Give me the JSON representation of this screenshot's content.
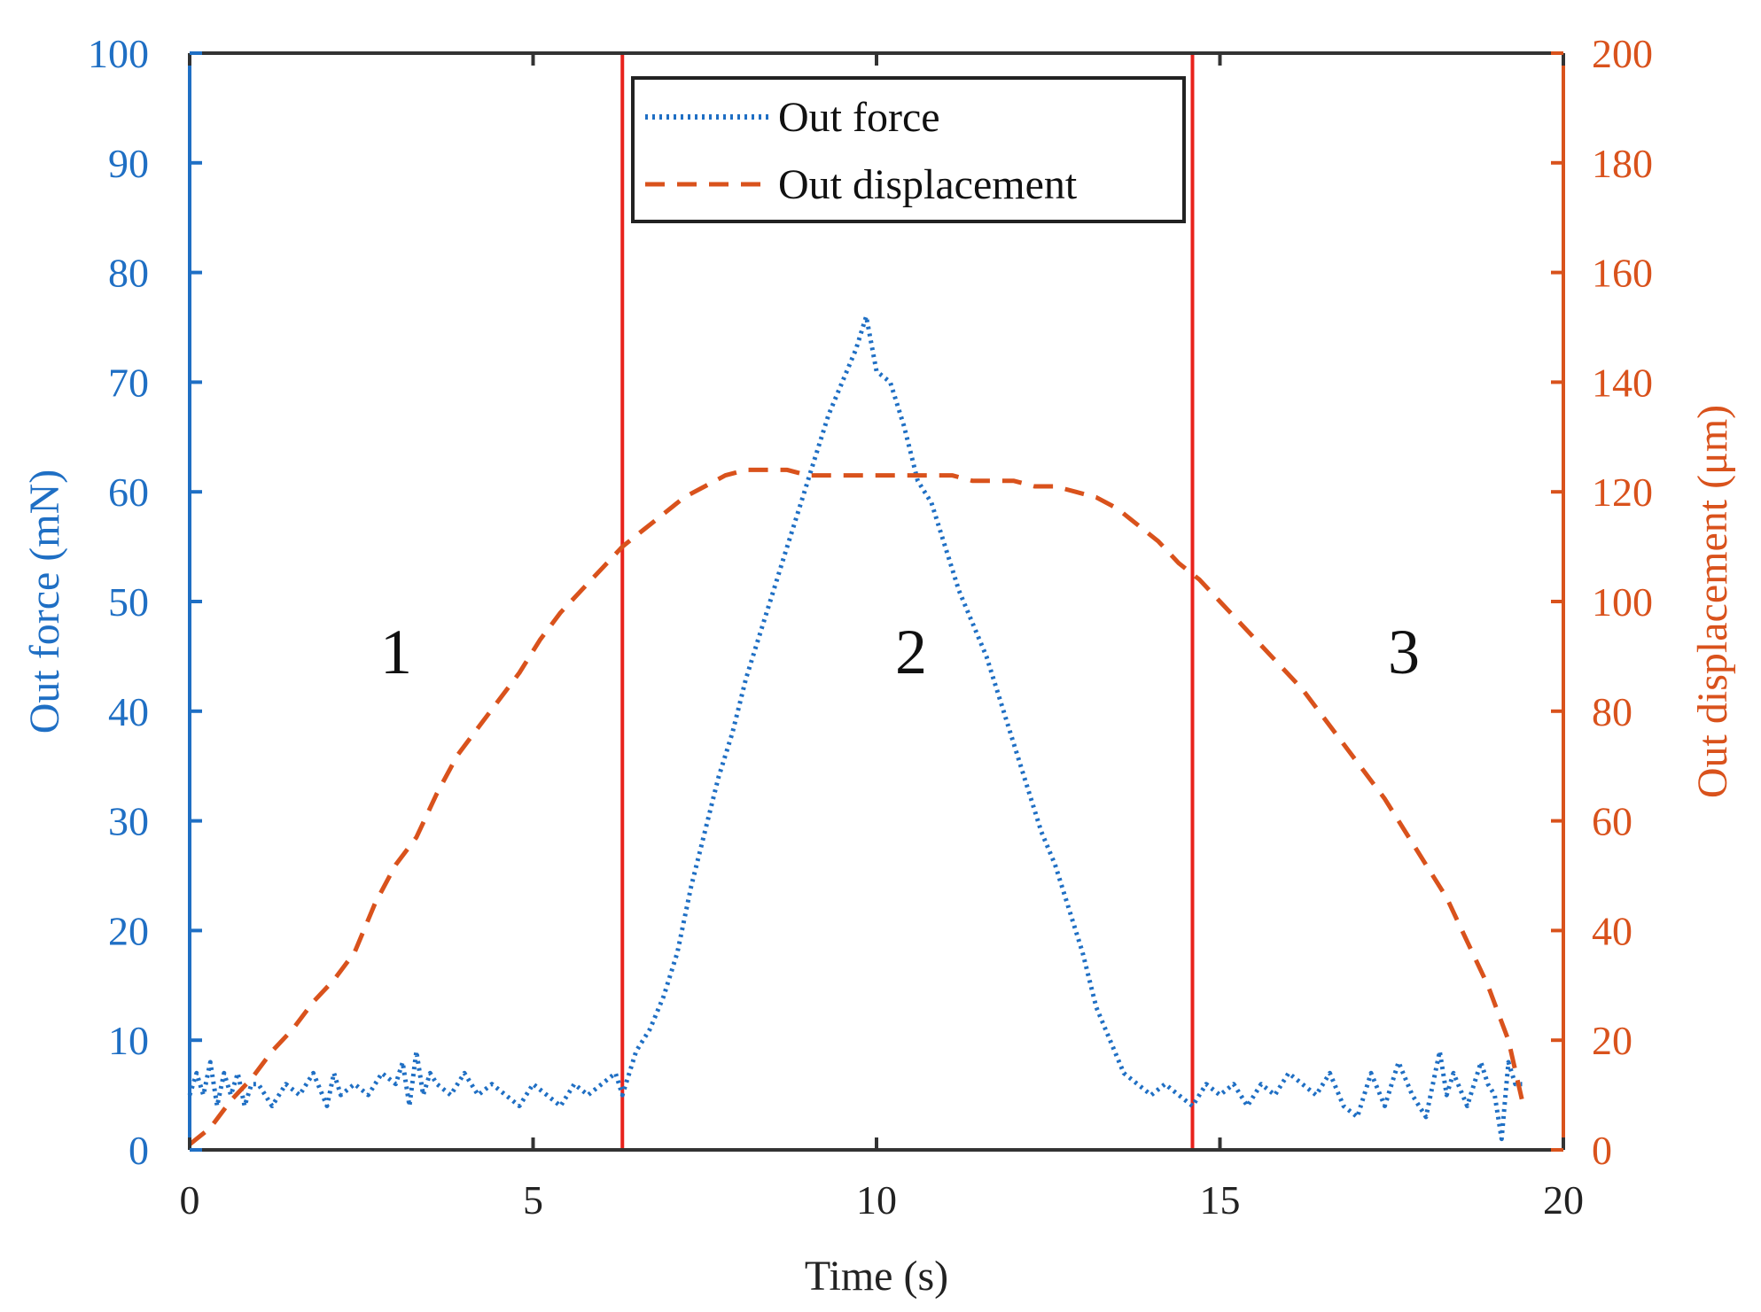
{
  "chart_data": {
    "type": "line",
    "title": "",
    "xlabel": "Time (s)",
    "ylabel_left": "Out force (mN)",
    "ylabel_right": "Out displacement (μm)",
    "xlim": [
      0,
      20
    ],
    "ylim_left": [
      0,
      100
    ],
    "ylim_right": [
      0,
      200
    ],
    "x_ticks": [
      "0",
      "5",
      "10",
      "15",
      "20"
    ],
    "y_left_ticks": [
      "0",
      "10",
      "20",
      "30",
      "40",
      "50",
      "60",
      "70",
      "80",
      "90",
      "100"
    ],
    "y_right_ticks": [
      "0",
      "20",
      "40",
      "60",
      "80",
      "100",
      "120",
      "140",
      "160",
      "180",
      "200"
    ],
    "grid": false,
    "legend": {
      "position": "top-center",
      "entries": [
        "Out force",
        "Out displacement"
      ]
    },
    "colors": {
      "force": "#1f6fc4",
      "displacement": "#d9521c",
      "divider": "#e8221c",
      "axis_left": "#1f6fc4",
      "axis_right": "#d9521c"
    },
    "dividers_x": [
      6.3,
      14.6
    ],
    "region_labels": [
      {
        "text": "1",
        "x": 3.0,
        "y": 45
      },
      {
        "text": "2",
        "x": 10.4,
        "y": 45
      },
      {
        "text": "3",
        "x": 17.5,
        "y": 45
      }
    ],
    "series": [
      {
        "name": "Out force",
        "axis": "left",
        "style": "dotted",
        "x": [
          0,
          0.1,
          0.2,
          0.3,
          0.4,
          0.5,
          0.6,
          0.7,
          0.8,
          0.9,
          1.0,
          1.2,
          1.4,
          1.6,
          1.8,
          2.0,
          2.1,
          2.2,
          2.4,
          2.6,
          2.8,
          3.0,
          3.1,
          3.2,
          3.3,
          3.4,
          3.5,
          3.6,
          3.8,
          4.0,
          4.2,
          4.4,
          4.6,
          4.8,
          5.0,
          5.2,
          5.4,
          5.6,
          5.8,
          6.0,
          6.2,
          6.3,
          6.5,
          6.7,
          6.9,
          7.1,
          7.3,
          7.5,
          7.7,
          7.9,
          8.1,
          8.3,
          8.5,
          8.7,
          8.9,
          9.1,
          9.3,
          9.5,
          9.7,
          9.85,
          10.0,
          10.2,
          10.4,
          10.6,
          10.8,
          11.0,
          11.2,
          11.4,
          11.6,
          11.8,
          12.0,
          12.2,
          12.4,
          12.6,
          12.8,
          13.0,
          13.2,
          13.4,
          13.6,
          13.8,
          14.0,
          14.2,
          14.4,
          14.6,
          14.8,
          15.0,
          15.2,
          15.4,
          15.6,
          15.8,
          16.0,
          16.2,
          16.4,
          16.6,
          16.8,
          17.0,
          17.2,
          17.4,
          17.6,
          17.8,
          18.0,
          18.2,
          18.3,
          18.4,
          18.6,
          18.8,
          18.9,
          19.0,
          19.1,
          19.2,
          19.3,
          19.4
        ],
        "values": [
          5,
          7,
          5,
          8,
          4,
          7,
          5,
          7,
          4,
          6,
          6,
          4,
          6,
          5,
          7,
          4,
          7,
          5,
          6,
          5,
          7,
          6,
          8,
          4,
          9,
          5,
          7,
          6,
          5,
          7,
          5,
          6,
          5,
          4,
          6,
          5,
          4,
          6,
          5,
          6,
          7,
          5,
          9,
          11,
          14,
          18,
          24,
          29,
          34,
          38,
          43,
          47,
          51,
          55,
          59,
          63,
          67,
          70,
          73,
          76,
          71,
          70,
          66,
          61,
          59,
          55,
          51,
          48,
          45,
          41,
          37,
          33,
          29,
          26,
          22,
          18,
          13,
          10,
          7,
          6,
          5,
          6,
          5,
          4,
          6,
          5,
          6,
          4,
          6,
          5,
          7,
          6,
          5,
          7,
          4,
          3,
          7,
          4,
          8,
          5,
          3,
          9,
          5,
          7,
          4,
          8,
          6,
          5,
          1,
          8,
          6,
          6
        ]
      },
      {
        "name": "Out displacement",
        "axis": "right",
        "style": "dashed",
        "x": [
          0,
          0.3,
          0.6,
          0.9,
          1.2,
          1.5,
          1.8,
          2.1,
          2.4,
          2.7,
          3.0,
          3.3,
          3.6,
          3.9,
          4.2,
          4.5,
          4.8,
          5.1,
          5.4,
          5.7,
          6.0,
          6.3,
          6.6,
          6.9,
          7.2,
          7.5,
          7.8,
          8.1,
          8.4,
          8.7,
          9.0,
          9.3,
          9.6,
          9.9,
          10.2,
          10.5,
          10.8,
          11.1,
          11.4,
          11.7,
          12.0,
          12.3,
          12.6,
          12.9,
          13.2,
          13.5,
          13.8,
          14.1,
          14.4,
          14.7,
          15.0,
          15.3,
          15.6,
          15.9,
          16.2,
          16.5,
          16.8,
          17.1,
          17.4,
          17.7,
          18.0,
          18.3,
          18.6,
          18.9,
          19.2,
          19.4
        ],
        "values": [
          1,
          4,
          9,
          13,
          18,
          22,
          27,
          31,
          36,
          45,
          52,
          57,
          65,
          72,
          77,
          82,
          87,
          93,
          98,
          102,
          106,
          110,
          113,
          116,
          119,
          121,
          123,
          124,
          124,
          124,
          123,
          123,
          123,
          123,
          123,
          123,
          123,
          123,
          122,
          122,
          122,
          121,
          121,
          120,
          119,
          117,
          114,
          111,
          107,
          104,
          100,
          96,
          92,
          88,
          84,
          79,
          74,
          69,
          64,
          58,
          52,
          46,
          38,
          30,
          20,
          9
        ]
      }
    ]
  }
}
